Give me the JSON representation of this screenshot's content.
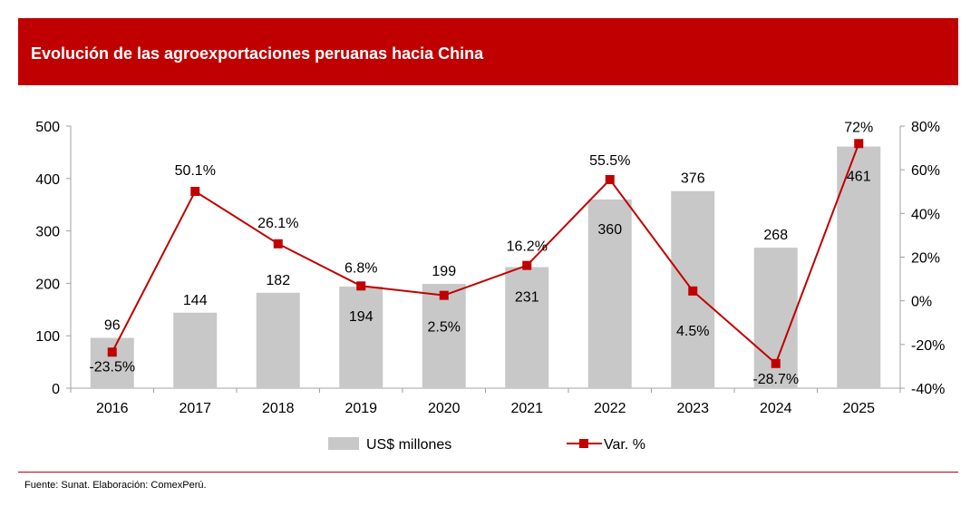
{
  "header": {
    "title": "Evolución de las agroexportaciones peruanas hacia China"
  },
  "footer": {
    "source": "Fuente: Sunat. Elaboración: ComexPerú."
  },
  "colors": {
    "header_bg": "#c00000",
    "bar": "#c8c8c8",
    "line": "#c00000",
    "marker": "#c00000"
  },
  "chart_data": {
    "type": "bar",
    "title": "Evolución de las agroexportaciones peruanas hacia China",
    "categories": [
      "2016",
      "2017",
      "2018",
      "2019",
      "2020",
      "2021",
      "2022",
      "2023",
      "2024",
      "2025"
    ],
    "series": [
      {
        "name": "US$ millones",
        "type": "bar",
        "axis": "left",
        "values": [
          96,
          144,
          182,
          194,
          199,
          231,
          360,
          376,
          268,
          461
        ],
        "labels": [
          "96",
          "144",
          "182",
          "194",
          "199",
          "231",
          "360",
          "376",
          "268",
          "461"
        ]
      },
      {
        "name": "Var. %",
        "type": "line",
        "axis": "right",
        "values": [
          -23.5,
          50.1,
          26.1,
          6.8,
          2.5,
          16.2,
          55.5,
          4.5,
          -28.7,
          72
        ],
        "labels": [
          "-23.5%",
          "50.1%",
          "26.1%",
          "6.8%",
          "2.5%",
          "16.2%",
          "55.5%",
          "4.5%",
          "-28.7%",
          "72%"
        ]
      }
    ],
    "y_left": {
      "min": 0,
      "max": 500,
      "ticks": [
        0,
        100,
        200,
        300,
        400,
        500
      ],
      "tick_labels": [
        "0",
        "100",
        "200",
        "300",
        "400",
        "500"
      ]
    },
    "y_right": {
      "min": -40,
      "max": 80,
      "ticks": [
        -40,
        -20,
        0,
        20,
        40,
        60,
        80
      ],
      "tick_labels": [
        "-40%",
        "-20%",
        "0%",
        "20%",
        "40%",
        "60%",
        "80%"
      ]
    },
    "grid": false,
    "legend": {
      "position": "bottom",
      "entries": [
        "US$ millones",
        "Var. %"
      ]
    }
  }
}
